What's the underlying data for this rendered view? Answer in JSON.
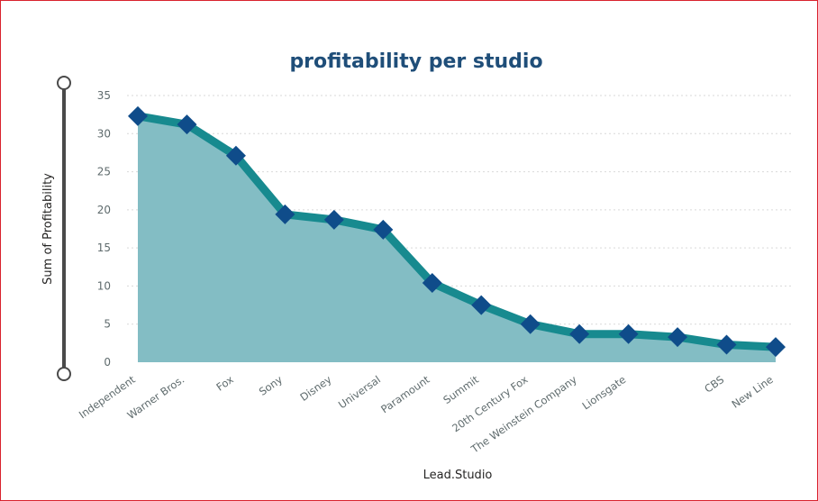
{
  "chart_data": {
    "type": "area",
    "title": "profitability per studio",
    "xlabel": "Lead.Studio",
    "ylabel": "Sum of Profitability",
    "ylim": [
      0,
      35
    ],
    "yticks": [
      0,
      5,
      10,
      15,
      20,
      25,
      30,
      35
    ],
    "grid": true,
    "categories": [
      "Independent",
      "Warner Bros.",
      "Fox",
      "Sony",
      "Disney",
      "Universal",
      "Paramount",
      "Summit",
      "20th Century Fox",
      "The Weinstein Company",
      "Lionsgate",
      "",
      "CBS",
      "New Line"
    ],
    "values": [
      32.3,
      31.2,
      27.1,
      19.4,
      18.7,
      17.4,
      10.4,
      7.5,
      5.0,
      3.7,
      3.7,
      3.3,
      2.3,
      2.0
    ],
    "colors": {
      "line": "#178a8f",
      "area": "#83bdc4",
      "marker": "#0f4c8a",
      "title": "#1f4e79",
      "grid": "#d9d9d9",
      "slider": "#4a4a4a"
    }
  }
}
